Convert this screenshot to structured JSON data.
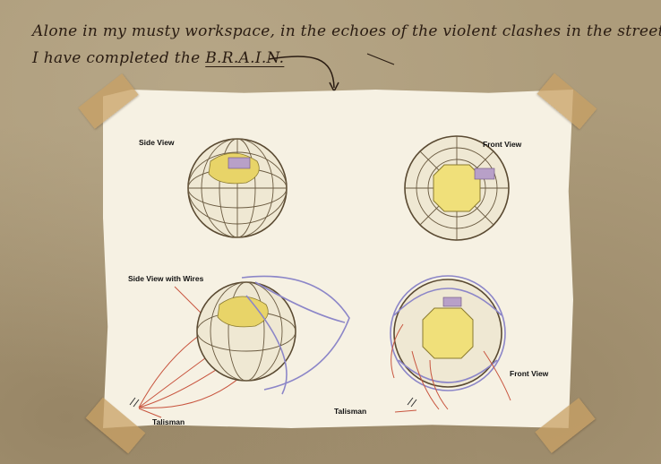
{
  "narration": {
    "line1": "Alone in my musty workspace, in the echoes of the violent clashes in the streets...",
    "line2_prefix": "I have completed the ",
    "line2_emphasis": "B.R.A.I.N."
  },
  "sheet": {
    "side_view_label": "Side View",
    "front_view_label": "Front View",
    "side_view_wires_label": "Side View with Wires",
    "front_view_wires_label": "Front View",
    "talisman_left_label": "Talisman",
    "talisman_right_label": "Talisman"
  },
  "colors": {
    "parchment": "#ad9c7b",
    "paper": "#f6f1e3",
    "ink": "#2a1c12",
    "tape": "#c8a064",
    "wire_red": "#c8553f",
    "wire_blue": "#8c86c8",
    "core_yellow": "#f0e07a"
  }
}
